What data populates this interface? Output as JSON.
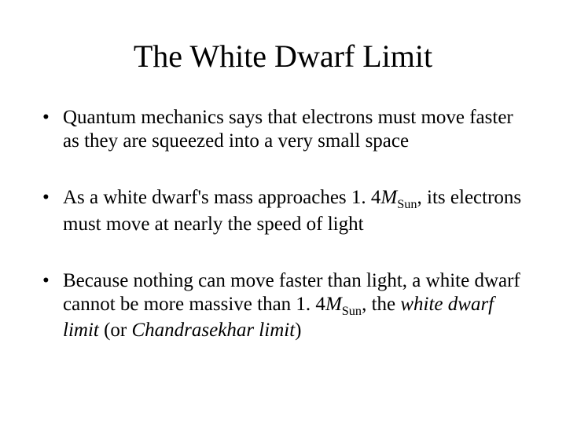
{
  "title": "The White Dwarf Limit",
  "bullets": {
    "b1": "Quantum mechanics says that electrons must move faster as they are squeezed into a very small space",
    "b2_pre": "As a white dwarf's mass approaches 1. 4",
    "b2_m": "M",
    "b2_sub": "Sun",
    "b2_post": ", its electrons must move at nearly the speed of light",
    "b3_pre": "Because nothing can move faster than light, a white dwarf cannot be more massive than 1. 4",
    "b3_m": "M",
    "b3_sub": "Sun",
    "b3_mid": ", the ",
    "b3_term1": "white dwarf limit",
    "b3_or": " (or ",
    "b3_term2": "Chandrasekhar limit",
    "b3_close": ")"
  },
  "style": {
    "background_color": "#ffffff",
    "text_color": "#000000",
    "title_fontsize": 40,
    "body_fontsize": 25,
    "font_family": "Times New Roman"
  }
}
